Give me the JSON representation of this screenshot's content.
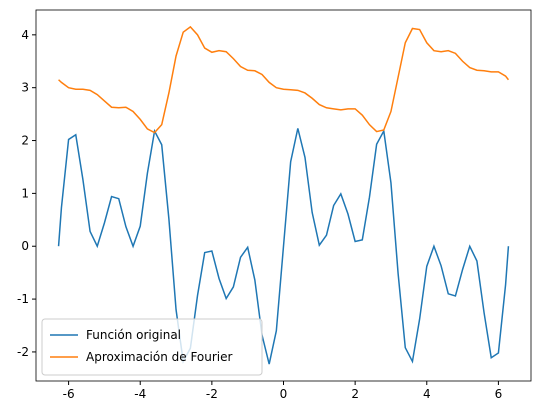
{
  "chart_data": {
    "type": "line",
    "x": [
      -6.28,
      -6.2,
      -6.0,
      -5.8,
      -5.6,
      -5.4,
      -5.2,
      -5.0,
      -4.8,
      -4.6,
      -4.4,
      -4.2,
      -4.0,
      -3.8,
      -3.6,
      -3.4,
      -3.2,
      -3.0,
      -2.8,
      -2.6,
      -2.4,
      -2.2,
      -2.0,
      -1.8,
      -1.6,
      -1.4,
      -1.2,
      -1.0,
      -0.8,
      -0.6,
      -0.4,
      -0.2,
      0,
      0.2,
      0.4,
      0.6,
      0.8,
      1.0,
      1.2,
      1.4,
      1.6,
      1.8,
      2.0,
      2.2,
      2.4,
      2.6,
      2.8,
      3.0,
      3.2,
      3.4,
      3.6,
      3.8,
      4.0,
      4.2,
      4.4,
      4.6,
      4.8,
      5.0,
      5.2,
      5.4,
      5.6,
      5.8,
      6.0,
      6.2,
      6.28
    ],
    "series": [
      {
        "name": "Función original",
        "color": "#1f77b4",
        "values": [
          0,
          0.73,
          2.02,
          2.11,
          1.26,
          0.28,
          -0.0,
          0.44,
          0.94,
          0.9,
          0.37,
          0.0,
          0.38,
          1.38,
          2.18,
          1.92,
          0.52,
          -1.2,
          -2.18,
          -1.93,
          -0.93,
          -0.12,
          -0.09,
          -0.61,
          -0.99,
          -0.77,
          -0.21,
          -0.02,
          -0.64,
          -1.68,
          -2.23,
          -1.6,
          0,
          1.6,
          2.23,
          1.68,
          0.64,
          0.02,
          0.21,
          0.77,
          0.99,
          0.61,
          0.09,
          0.12,
          0.93,
          1.93,
          2.18,
          1.2,
          -0.52,
          -1.92,
          -2.18,
          -1.38,
          -0.38,
          0.0,
          -0.37,
          -0.9,
          -0.94,
          -0.44,
          0.0,
          -0.28,
          -1.26,
          -2.11,
          -2.02,
          -0.73,
          0
        ]
      },
      {
        "name": "Aproximación de Fourier",
        "color": "#ff7f0e",
        "values": [
          3.15,
          3.1,
          3.0,
          2.97,
          2.97,
          2.95,
          2.87,
          2.75,
          2.63,
          2.62,
          2.63,
          2.55,
          2.4,
          2.22,
          2.15,
          2.3,
          2.9,
          3.6,
          4.05,
          4.15,
          4.0,
          3.75,
          3.67,
          3.7,
          3.68,
          3.55,
          3.4,
          3.33,
          3.32,
          3.25,
          3.1,
          3.0,
          2.97,
          2.96,
          2.95,
          2.9,
          2.8,
          2.68,
          2.62,
          2.6,
          2.58,
          2.6,
          2.6,
          2.48,
          2.3,
          2.17,
          2.2,
          2.55,
          3.2,
          3.85,
          4.12,
          4.1,
          3.85,
          3.7,
          3.68,
          3.7,
          3.65,
          3.5,
          3.38,
          3.33,
          3.32,
          3.3,
          3.3,
          3.22,
          3.15
        ]
      }
    ],
    "xlim": [
      -6.91,
      6.91
    ],
    "xticks": [
      -6,
      -4,
      -2,
      0,
      2,
      4,
      6
    ],
    "ylim": [
      -2.55,
      4.47
    ],
    "yticks": [
      -2,
      -1,
      0,
      1,
      2,
      3,
      4
    ],
    "legend": "lower left"
  }
}
